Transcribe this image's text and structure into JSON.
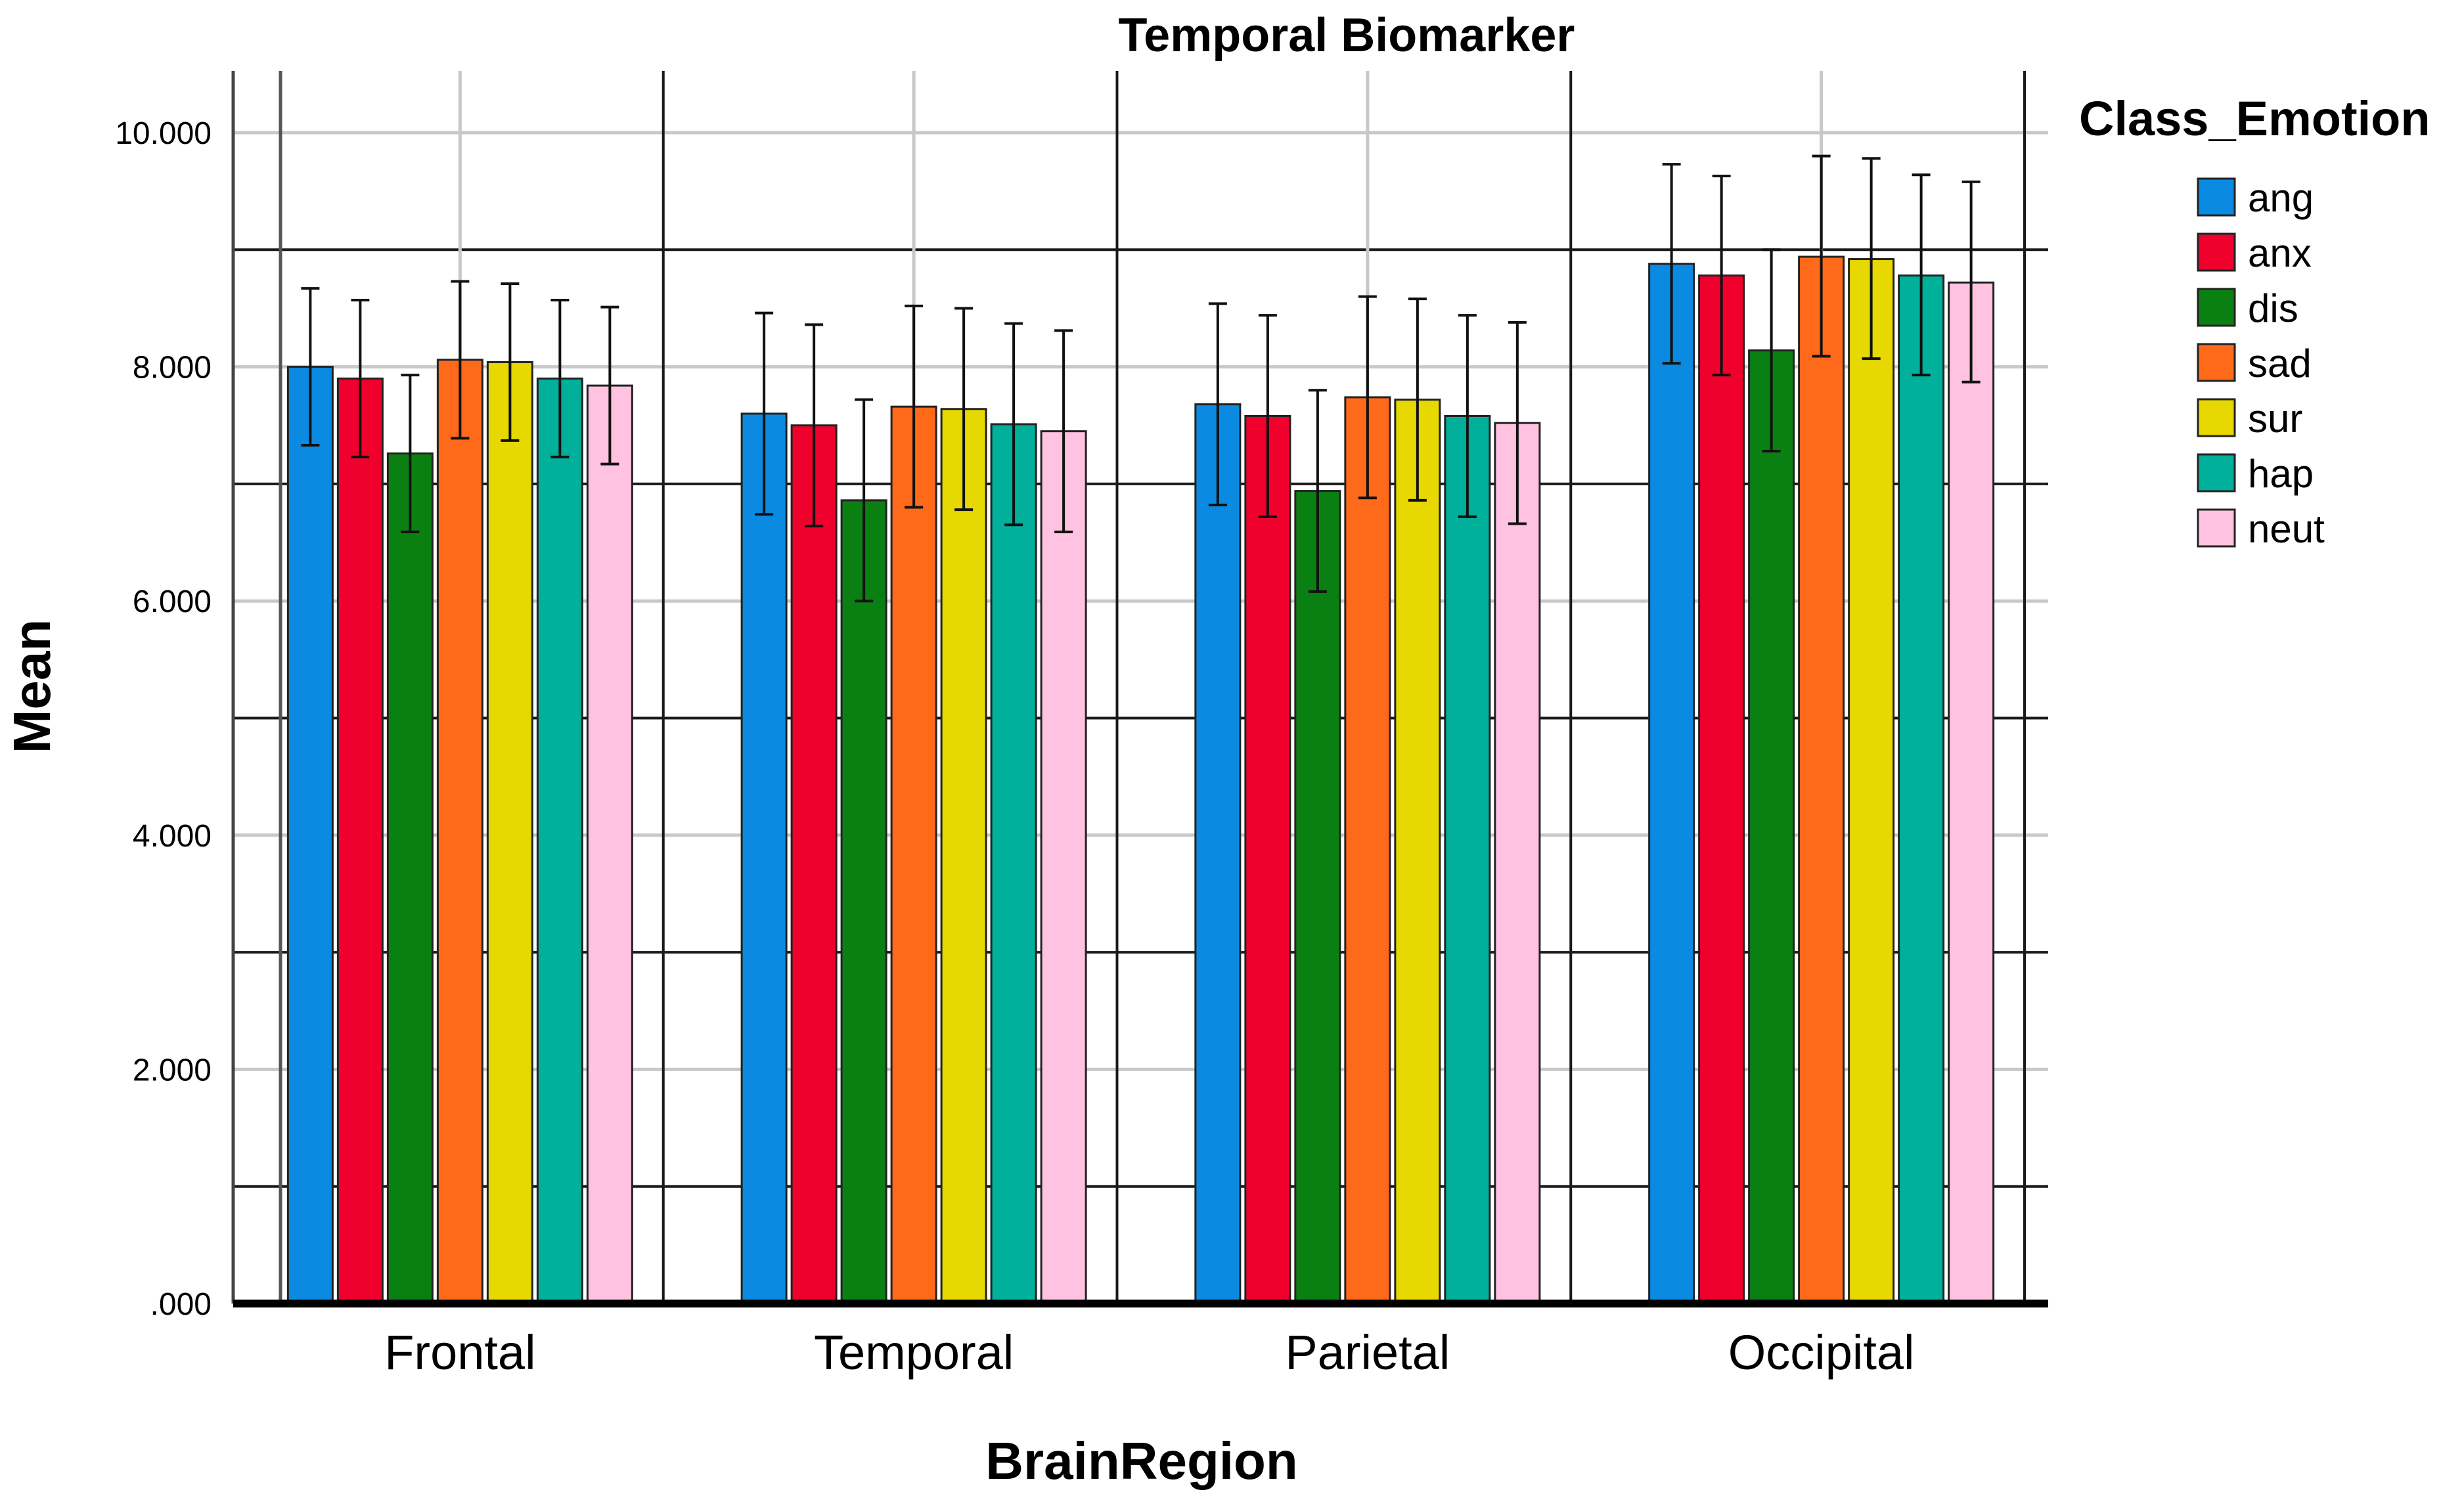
{
  "chart_data": {
    "type": "bar",
    "title": "Temporal Biomarker",
    "xlabel": "BrainRegion",
    "ylabel": "Mean",
    "ylim": [
      0,
      10
    ],
    "yticks": [
      0,
      2,
      4,
      6,
      8,
      10
    ],
    "ytick_labels": [
      ".000",
      "2.000",
      "4.000",
      "6.000",
      "8.000",
      "10.000"
    ],
    "categories": [
      "Frontal",
      "Temporal",
      "Parietal",
      "Occipital"
    ],
    "legend_title": "Class_Emotion",
    "legend_position": "top-right",
    "grid": true,
    "series": [
      {
        "name": "ang",
        "color": "#0a8ae0",
        "values": [
          8.0,
          7.6,
          7.68,
          8.88
        ],
        "err_low": [
          7.33,
          6.74,
          6.82,
          8.03
        ],
        "err_high": [
          8.67,
          8.46,
          8.54,
          9.73
        ]
      },
      {
        "name": "anx",
        "color": "#f0002c",
        "values": [
          7.9,
          7.5,
          7.58,
          8.78
        ],
        "err_low": [
          7.23,
          6.64,
          6.72,
          7.93
        ],
        "err_high": [
          8.57,
          8.36,
          8.44,
          9.63
        ]
      },
      {
        "name": "dis",
        "color": "#0b8012",
        "values": [
          7.26,
          6.86,
          6.94,
          8.14
        ],
        "err_low": [
          6.59,
          6.0,
          6.08,
          7.28
        ],
        "err_high": [
          7.93,
          7.72,
          7.8,
          9.0
        ]
      },
      {
        "name": "sad",
        "color": "#ff6a1a",
        "values": [
          8.06,
          7.66,
          7.74,
          8.94
        ],
        "err_low": [
          7.39,
          6.8,
          6.88,
          8.09
        ],
        "err_high": [
          8.73,
          8.52,
          8.6,
          9.8
        ]
      },
      {
        "name": "sur",
        "color": "#e6d800",
        "values": [
          8.04,
          7.64,
          7.72,
          8.92
        ],
        "err_low": [
          7.37,
          6.78,
          6.86,
          8.07
        ],
        "err_high": [
          8.71,
          8.5,
          8.58,
          9.78
        ]
      },
      {
        "name": "hap",
        "color": "#00b09a",
        "values": [
          7.9,
          7.51,
          7.58,
          8.78
        ],
        "err_low": [
          7.23,
          6.65,
          6.72,
          7.93
        ],
        "err_high": [
          8.57,
          8.37,
          8.44,
          9.64
        ]
      },
      {
        "name": "neut",
        "color": "#ffc2e0",
        "values": [
          7.84,
          7.45,
          7.52,
          8.72
        ],
        "err_low": [
          7.17,
          6.59,
          6.66,
          7.87
        ],
        "err_high": [
          8.51,
          8.31,
          8.38,
          9.58
        ]
      }
    ]
  }
}
